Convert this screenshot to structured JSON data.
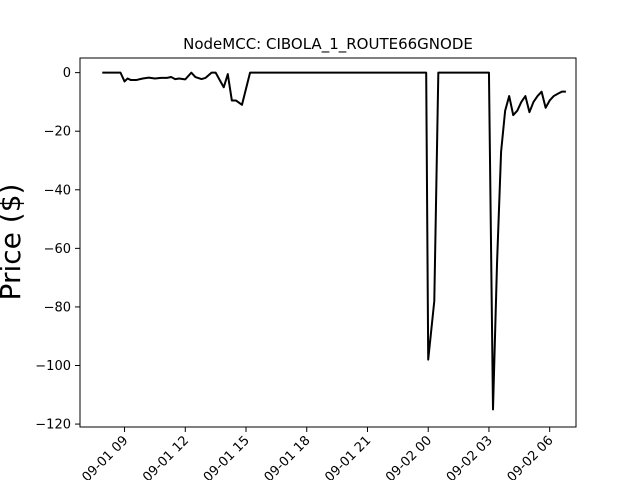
{
  "chart_data": {
    "type": "line",
    "title": "NodeMCC: CIBOLA_1_ROUTE66GNODE",
    "xlabel": "",
    "ylabel": "Price ($)",
    "grid": false,
    "legend": "none",
    "line_color": "#000000",
    "xlim_hours": [
      6.8,
      31.3
    ],
    "ylim": [
      -121,
      5
    ],
    "x_ticks": [
      {
        "hour": 9,
        "label": "09-01 09"
      },
      {
        "hour": 12,
        "label": "09-01 12"
      },
      {
        "hour": 15,
        "label": "09-01 15"
      },
      {
        "hour": 18,
        "label": "09-01 18"
      },
      {
        "hour": 21,
        "label": "09-01 21"
      },
      {
        "hour": 24,
        "label": "09-02 00"
      },
      {
        "hour": 27,
        "label": "09-02 03"
      },
      {
        "hour": 30,
        "label": "09-02 06"
      }
    ],
    "y_ticks": [
      0,
      -20,
      -40,
      -60,
      -80,
      -100,
      -120
    ],
    "series": [
      {
        "name": "",
        "hours": [
          7.9,
          8.2,
          8.5,
          8.8,
          9.0,
          9.15,
          9.3,
          9.6,
          9.9,
          10.2,
          10.5,
          10.8,
          11.1,
          11.3,
          11.5,
          11.7,
          11.9,
          12.0,
          12.3,
          12.5,
          12.8,
          13.0,
          13.3,
          13.5,
          13.7,
          13.9,
          14.1,
          14.3,
          14.5,
          14.8,
          15.2,
          16,
          18,
          20,
          22,
          23.4,
          23.6,
          23.9,
          24.0,
          24.3,
          24.5,
          25,
          26,
          26.5,
          26.8,
          27.0,
          27.2,
          27.4,
          27.6,
          27.8,
          28.0,
          28.2,
          28.4,
          28.6,
          28.8,
          29.0,
          29.2,
          29.4,
          29.6,
          29.8,
          30.0,
          30.2,
          30.4,
          30.6,
          30.8
        ],
        "values": [
          0,
          0,
          0,
          0,
          -3,
          -2,
          -2.5,
          -2.5,
          -2,
          -1.7,
          -2,
          -1.8,
          -1.8,
          -1.5,
          -2.2,
          -2,
          -2.2,
          -2.3,
          0,
          -1.5,
          -2.2,
          -1.8,
          0,
          0,
          -2.5,
          -5,
          -0.5,
          -9.5,
          -9.5,
          -11,
          0,
          0,
          0,
          0,
          0,
          0,
          0,
          0,
          -98,
          -78,
          0,
          0,
          0,
          0,
          0,
          0,
          -115,
          -65,
          -27,
          -13,
          -8,
          -14.5,
          -13,
          -10,
          -8,
          -13.5,
          -10,
          -8,
          -6.5,
          -12,
          -9.5,
          -8,
          -7.2,
          -6.5,
          -6.5
        ]
      }
    ]
  }
}
